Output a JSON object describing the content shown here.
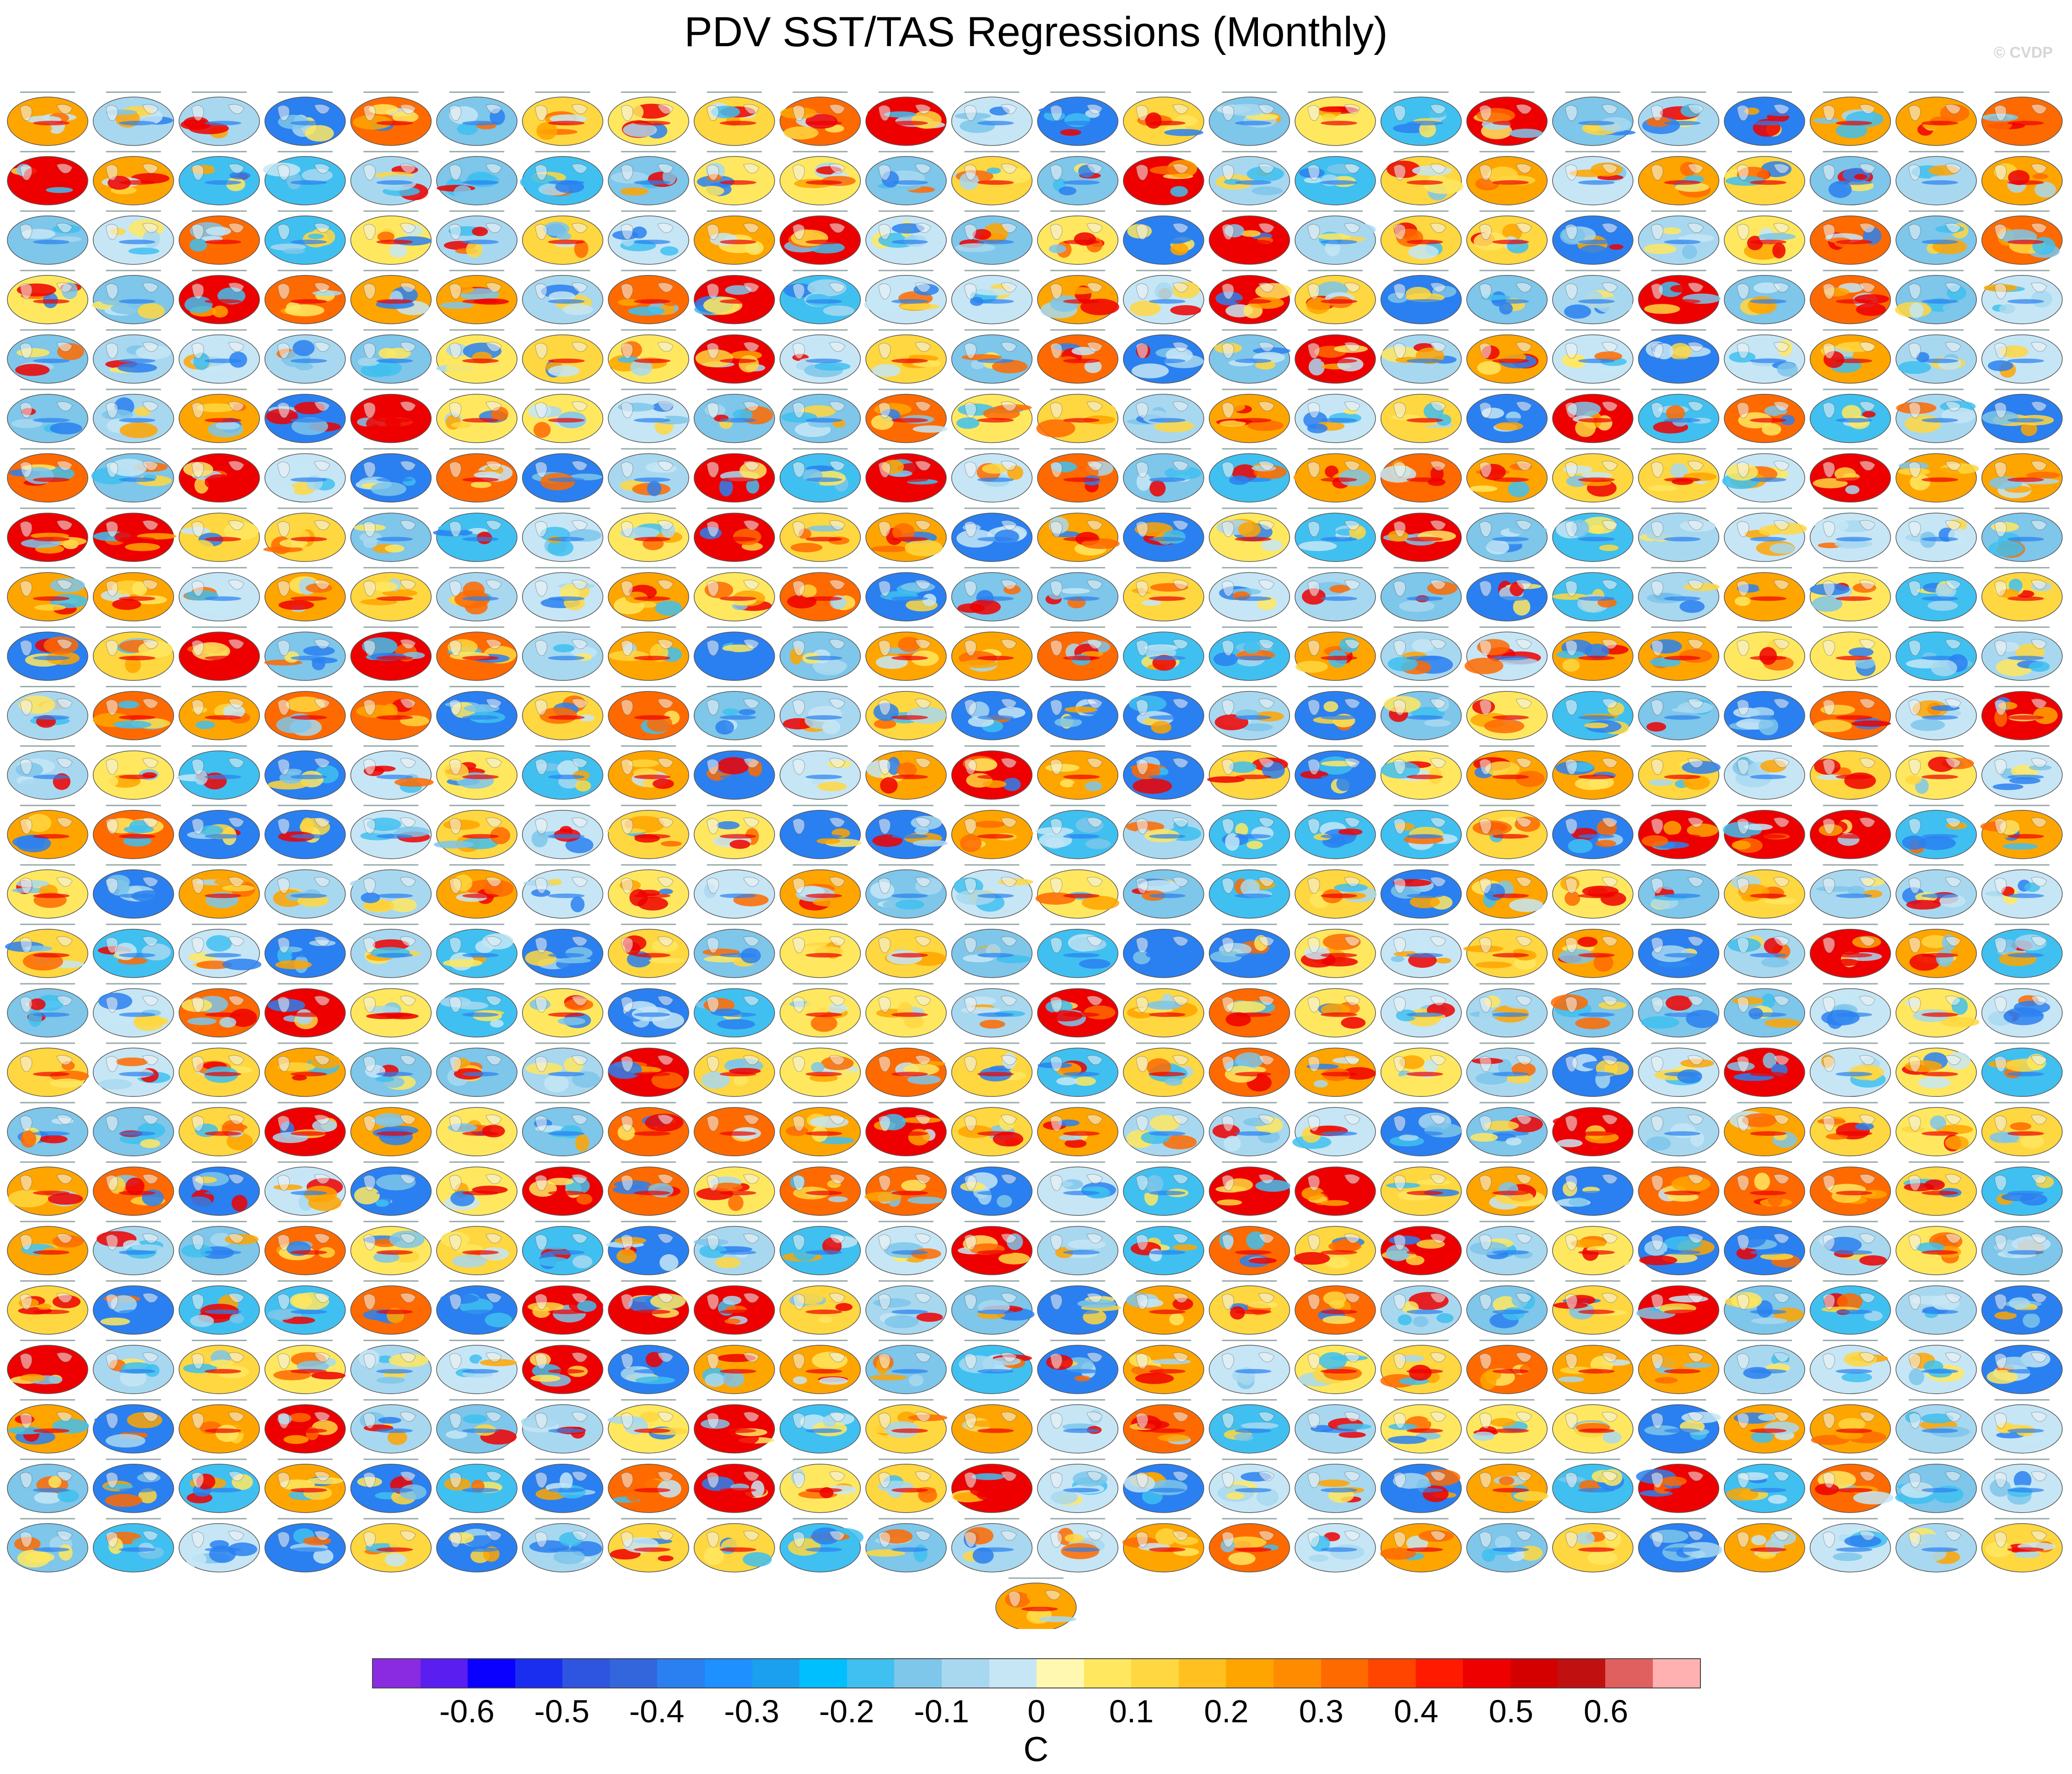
{
  "title": "PDV SST/TAS Regressions (Monthly)",
  "watermark": "© CVDP",
  "chart_data": {
    "type": "heatmap",
    "title": "PDV SST/TAS Regressions (Monthly)",
    "panel_grid": {
      "rows": 25,
      "columns": 24,
      "extra_panels_last_row": 1
    },
    "colorbar": {
      "units": "C",
      "tick_labels": [
        "-0.6",
        "-0.5",
        "-0.4",
        "-0.3",
        "-0.2",
        "-0.1",
        "0",
        "0.1",
        "0.2",
        "0.3",
        "0.4",
        "0.5",
        "0.6"
      ],
      "colors": [
        "#8a2be2",
        "#5a1ef0",
        "#0a00ff",
        "#1a2ef0",
        "#2e55e0",
        "#3366dd",
        "#2a80f0",
        "#1e90ff",
        "#1aa0ee",
        "#00bfff",
        "#40c0f0",
        "#7ec6ea",
        "#a8d8f0",
        "#c6e6f6",
        "#fff8b0",
        "#ffe860",
        "#ffd740",
        "#ffc020",
        "#ffa500",
        "#ff8c00",
        "#ff6a00",
        "#ff4500",
        "#ff1a00",
        "#ee0000",
        "#d40000",
        "#c01010",
        "#e06060",
        "#ffb0b0"
      ]
    }
  }
}
